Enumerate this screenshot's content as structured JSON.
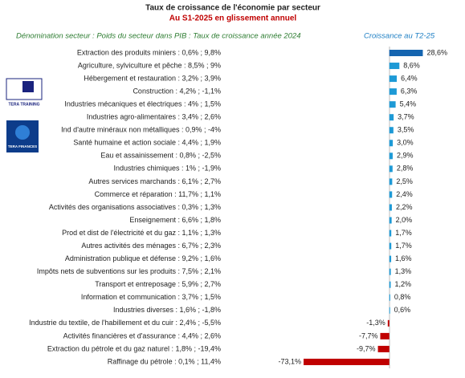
{
  "chart_data": {
    "type": "bar",
    "orientation": "horizontal",
    "title": "Taux de croissance de l'économie par secteur",
    "subtitle": "Au S1-2025 en glissement annuel",
    "category_header": "Dénomination secteur : Poids du secteur dans PIB : Taux de croissance année 2024",
    "value_header": "Croissance au T2-25",
    "logos": [
      "TERA TRAINING",
      "TERA FINANCES"
    ],
    "categories": [
      "Extraction des produits miniers : 0,6% ; 9,8%",
      "Agriculture, sylviculture et pêche : 8,5% ; 9%",
      "Hébergement et restauration : 3,2% ; 3,9%",
      "Construction : 4,2% ; -1,1%",
      "Industries mécaniques et électriques : 4% ; 1,5%",
      "Industries agro-alimentaires : 3,4% ; 2,6%",
      "Ind d'autre minéraux non métalliques : 0,9% ; -4%",
      "Santé humaine et action sociale : 4,4% ; 1,9%",
      "Eau et assainissement : 0,8% ; -2,5%",
      "Industries chimiques : 1% ; -1,9%",
      "Autres services marchands : 6,1% ; 2,7%",
      "Commerce et réparation : 11,7% ; 1,1%",
      "Activités des organisations associatives : 0,3% ; 1,3%",
      "Enseignement : 6,6% ; 1,8%",
      "Prod et dist de l'électricité et du gaz : 1,1% ; 1,3%",
      "Autres activités des ménages : 6,7% ; 2,3%",
      "Administration publique et  défense : 9,2% ; 1,6%",
      "Impôts nets de subventions sur les produits : 7,5% ; 2,1%",
      "Transport et entreposage : 5,9% ; 2,7%",
      "Information et communication : 3,7% ; 1,5%",
      "Industries diverses : 1,6% ; -1,8%",
      "Industrie du textile, de l'habillement et du cuir : 2,4% ; -5,5%",
      "Activités financières et d'assurance : 4,4% ; 2,6%",
      "Extraction du pétrole et du gaz naturel  : 1,8% ; -19,4%",
      "Raffinage du pétrole : 0,1% ; 11,4%"
    ],
    "values": [
      28.6,
      8.6,
      6.4,
      6.3,
      5.4,
      3.7,
      3.5,
      3.0,
      2.9,
      2.8,
      2.5,
      2.4,
      2.2,
      2.0,
      1.7,
      1.7,
      1.6,
      1.3,
      1.2,
      0.8,
      0.6,
      -1.3,
      -7.7,
      -9.7,
      -73.1
    ],
    "value_labels": [
      "28,6%",
      "8,6%",
      "6,4%",
      "6,3%",
      "5,4%",
      "3,7%",
      "3,5%",
      "3,0%",
      "2,9%",
      "2,8%",
      "2,5%",
      "2,4%",
      "2,2%",
      "2,0%",
      "1,7%",
      "1,7%",
      "1,6%",
      "1,3%",
      "1,2%",
      "0,8%",
      "0,6%",
      "-1,3%",
      "-7,7%",
      "-9,7%",
      "-73,1%"
    ],
    "colors": [
      "#1565b0",
      "#1e9ad6",
      "#1e9ad6",
      "#1e9ad6",
      "#1e9ad6",
      "#1e9ad6",
      "#1e9ad6",
      "#1e9ad6",
      "#1e9ad6",
      "#1e9ad6",
      "#1e9ad6",
      "#1e9ad6",
      "#1e9ad6",
      "#1e9ad6",
      "#1e9ad6",
      "#1e9ad6",
      "#1e9ad6",
      "#1e9ad6",
      "#1e9ad6",
      "#1e9ad6",
      "#1e9ad6",
      "#c00000",
      "#c00000",
      "#c00000",
      "#c00000"
    ],
    "xlim": [
      -75,
      30
    ]
  }
}
